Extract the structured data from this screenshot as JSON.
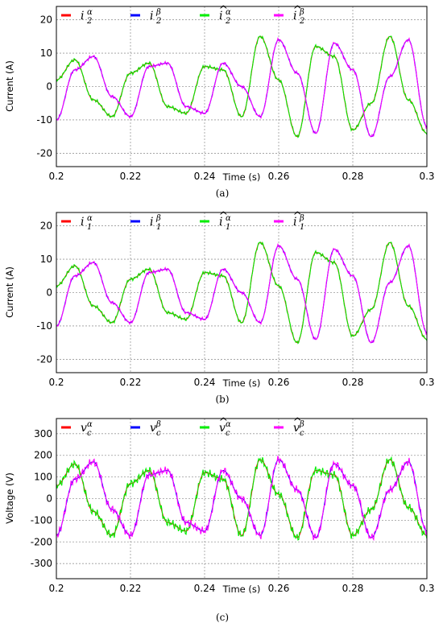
{
  "chart_data": [
    {
      "type": "line",
      "caption": "(a)",
      "xlabel": "Time (s)",
      "ylabel": "Current (A)",
      "xlim": [
        0.2,
        0.3
      ],
      "ylim": [
        -24,
        24
      ],
      "xticks": [
        "0.2",
        "0.22",
        "0.24",
        "0.26",
        "0.28",
        "0.3"
      ],
      "yticks": [
        "20",
        "10",
        "0",
        "-10",
        "-20"
      ],
      "grid": true,
      "legend": "top",
      "legend_entries": [
        {
          "base": "i",
          "sub": "2",
          "sup": "α",
          "hat": false,
          "color": "#ff0000"
        },
        {
          "base": "i",
          "sub": "2",
          "sup": "β",
          "hat": false,
          "color": "#0000ff"
        },
        {
          "base": "i",
          "sub": "2",
          "sup": "α",
          "hat": true,
          "color": "#00ee00"
        },
        {
          "base": "i",
          "sub": "2",
          "sup": "β",
          "hat": true,
          "color": "#ff00ff"
        }
      ],
      "series": [
        {
          "color": "#ff0000",
          "x": [
            0.2,
            0.205,
            0.21,
            0.215,
            0.22,
            0.225,
            0.23,
            0.235,
            0.24,
            0.245,
            0.25,
            0.255,
            0.26,
            0.265,
            0.27,
            0.275,
            0.28,
            0.285,
            0.29,
            0.295,
            0.3
          ],
          "y": [
            2,
            8,
            -4,
            -9,
            4,
            7,
            -6,
            -8,
            6,
            5,
            -9,
            15,
            2,
            -15,
            12,
            9,
            -13,
            -5,
            15,
            -4,
            -14
          ]
        },
        {
          "color": "#0000ff",
          "x": [
            0.2,
            0.205,
            0.21,
            0.215,
            0.22,
            0.225,
            0.23,
            0.235,
            0.24,
            0.245,
            0.25,
            0.255,
            0.26,
            0.265,
            0.27,
            0.275,
            0.28,
            0.285,
            0.29,
            0.295,
            0.3
          ],
          "y": [
            -10,
            5,
            9,
            -3,
            -9,
            6,
            7,
            -6,
            -8,
            7,
            0,
            -9,
            14,
            4,
            -14,
            13,
            5,
            -15,
            3,
            14,
            -12
          ]
        },
        {
          "color": "#00ee00",
          "x": [
            0.2,
            0.205,
            0.21,
            0.215,
            0.22,
            0.225,
            0.23,
            0.235,
            0.24,
            0.245,
            0.25,
            0.255,
            0.26,
            0.265,
            0.27,
            0.275,
            0.28,
            0.285,
            0.29,
            0.295,
            0.3
          ],
          "y": [
            2,
            8,
            -4,
            -9,
            4,
            7,
            -6,
            -8,
            6,
            5,
            -9,
            15,
            2,
            -15,
            12,
            9,
            -13,
            -5,
            15,
            -4,
            -14
          ]
        },
        {
          "color": "#ff00ff",
          "x": [
            0.2,
            0.205,
            0.21,
            0.215,
            0.22,
            0.225,
            0.23,
            0.235,
            0.24,
            0.245,
            0.25,
            0.255,
            0.26,
            0.265,
            0.27,
            0.275,
            0.28,
            0.285,
            0.29,
            0.295,
            0.3
          ],
          "y": [
            -10,
            5,
            9,
            -3,
            -9,
            6,
            7,
            -6,
            -8,
            7,
            0,
            -9,
            14,
            4,
            -14,
            13,
            5,
            -15,
            3,
            14,
            -12
          ]
        }
      ]
    },
    {
      "type": "line",
      "caption": "(b)",
      "xlabel": "Time (s)",
      "ylabel": "Current (A)",
      "xlim": [
        0.2,
        0.3
      ],
      "ylim": [
        -24,
        24
      ],
      "xticks": [
        "0.2",
        "0.22",
        "0.24",
        "0.26",
        "0.28",
        "0.3"
      ],
      "yticks": [
        "20",
        "10",
        "0",
        "-10",
        "-20"
      ],
      "grid": true,
      "legend": "top",
      "legend_entries": [
        {
          "base": "i",
          "sub": "1",
          "sup": "α",
          "hat": false,
          "color": "#ff0000"
        },
        {
          "base": "i",
          "sub": "1",
          "sup": "β",
          "hat": false,
          "color": "#0000ff"
        },
        {
          "base": "i",
          "sub": "1",
          "sup": "α",
          "hat": true,
          "color": "#00ee00"
        },
        {
          "base": "i",
          "sub": "1",
          "sup": "β",
          "hat": true,
          "color": "#ff00ff"
        }
      ],
      "series": [
        {
          "color": "#ff0000",
          "x": [
            0.2,
            0.205,
            0.21,
            0.215,
            0.22,
            0.225,
            0.23,
            0.235,
            0.24,
            0.245,
            0.25,
            0.255,
            0.26,
            0.265,
            0.27,
            0.275,
            0.28,
            0.285,
            0.29,
            0.295,
            0.3
          ],
          "y": [
            2,
            8,
            -4,
            -9,
            4,
            7,
            -6,
            -8,
            6,
            5,
            -9,
            15,
            2,
            -15,
            12,
            9,
            -13,
            -5,
            15,
            -4,
            -14
          ]
        },
        {
          "color": "#0000ff",
          "x": [
            0.2,
            0.205,
            0.21,
            0.215,
            0.22,
            0.225,
            0.23,
            0.235,
            0.24,
            0.245,
            0.25,
            0.255,
            0.26,
            0.265,
            0.27,
            0.275,
            0.28,
            0.285,
            0.29,
            0.295,
            0.3
          ],
          "y": [
            -10,
            5,
            9,
            -3,
            -9,
            6,
            7,
            -6,
            -8,
            7,
            0,
            -9,
            14,
            4,
            -14,
            13,
            5,
            -15,
            3,
            14,
            -12
          ]
        },
        {
          "color": "#00ee00",
          "x": [
            0.2,
            0.205,
            0.21,
            0.215,
            0.22,
            0.225,
            0.23,
            0.235,
            0.24,
            0.245,
            0.25,
            0.255,
            0.26,
            0.265,
            0.27,
            0.275,
            0.28,
            0.285,
            0.29,
            0.295,
            0.3
          ],
          "y": [
            2,
            8,
            -4,
            -9,
            4,
            7,
            -6,
            -8,
            6,
            5,
            -9,
            15,
            2,
            -15,
            12,
            9,
            -13,
            -5,
            15,
            -4,
            -14
          ]
        },
        {
          "color": "#ff00ff",
          "x": [
            0.2,
            0.205,
            0.21,
            0.215,
            0.22,
            0.225,
            0.23,
            0.235,
            0.24,
            0.245,
            0.25,
            0.255,
            0.26,
            0.265,
            0.27,
            0.275,
            0.28,
            0.285,
            0.29,
            0.295,
            0.3
          ],
          "y": [
            -10,
            5,
            9,
            -3,
            -9,
            6,
            7,
            -6,
            -8,
            7,
            0,
            -9,
            14,
            4,
            -14,
            13,
            5,
            -15,
            3,
            14,
            -12
          ]
        }
      ]
    },
    {
      "type": "line",
      "caption": "(c)",
      "xlabel": "Time (s)",
      "ylabel": "Voltage (V)",
      "xlim": [
        0.2,
        0.3
      ],
      "ylim": [
        -370,
        370
      ],
      "xticks": [
        "0.2",
        "0.22",
        "0.24",
        "0.26",
        "0.28",
        "0.3"
      ],
      "yticks": [
        "300",
        "200",
        "100",
        "0",
        "-100",
        "-200",
        "-300"
      ],
      "grid": true,
      "legend": "top",
      "legend_entries": [
        {
          "base": "v",
          "sub": "c",
          "sup": "α",
          "hat": false,
          "color": "#ff0000"
        },
        {
          "base": "v",
          "sub": "c",
          "sup": "β",
          "hat": false,
          "color": "#0000ff"
        },
        {
          "base": "v",
          "sub": "c",
          "sup": "α",
          "hat": true,
          "color": "#00ee00"
        },
        {
          "base": "v",
          "sub": "c",
          "sup": "β",
          "hat": true,
          "color": "#ff00ff"
        }
      ],
      "series": [
        {
          "color": "#ff0000",
          "x": [
            0.2,
            0.205,
            0.21,
            0.215,
            0.22,
            0.225,
            0.23,
            0.235,
            0.24,
            0.245,
            0.25,
            0.255,
            0.26,
            0.265,
            0.27,
            0.275,
            0.28,
            0.285,
            0.29,
            0.295,
            0.3
          ],
          "y": [
            60,
            160,
            -60,
            -170,
            70,
            130,
            -110,
            -150,
            120,
            90,
            -170,
            180,
            20,
            -180,
            130,
            110,
            -170,
            -50,
            180,
            -40,
            -170
          ]
        },
        {
          "color": "#0000ff",
          "x": [
            0.2,
            0.205,
            0.21,
            0.215,
            0.22,
            0.225,
            0.23,
            0.235,
            0.24,
            0.245,
            0.25,
            0.255,
            0.26,
            0.265,
            0.27,
            0.275,
            0.28,
            0.285,
            0.29,
            0.295,
            0.3
          ],
          "y": [
            -170,
            90,
            170,
            -50,
            -170,
            110,
            130,
            -110,
            -150,
            130,
            0,
            -170,
            180,
            40,
            -180,
            160,
            60,
            -180,
            40,
            170,
            -150
          ]
        },
        {
          "color": "#00ee00",
          "x": [
            0.2,
            0.205,
            0.21,
            0.215,
            0.22,
            0.225,
            0.23,
            0.235,
            0.24,
            0.245,
            0.25,
            0.255,
            0.26,
            0.265,
            0.27,
            0.275,
            0.28,
            0.285,
            0.29,
            0.295,
            0.3
          ],
          "y": [
            60,
            160,
            -60,
            -170,
            70,
            130,
            -110,
            -150,
            120,
            90,
            -170,
            180,
            20,
            -180,
            130,
            110,
            -170,
            -50,
            180,
            -40,
            -170
          ]
        },
        {
          "color": "#ff00ff",
          "x": [
            0.2,
            0.205,
            0.21,
            0.215,
            0.22,
            0.225,
            0.23,
            0.235,
            0.24,
            0.245,
            0.25,
            0.255,
            0.26,
            0.265,
            0.27,
            0.275,
            0.28,
            0.285,
            0.29,
            0.295,
            0.3
          ],
          "y": [
            -170,
            90,
            170,
            -50,
            -170,
            110,
            130,
            -110,
            -150,
            130,
            0,
            -170,
            180,
            40,
            -180,
            160,
            60,
            -180,
            40,
            170,
            -150
          ]
        }
      ]
    }
  ]
}
